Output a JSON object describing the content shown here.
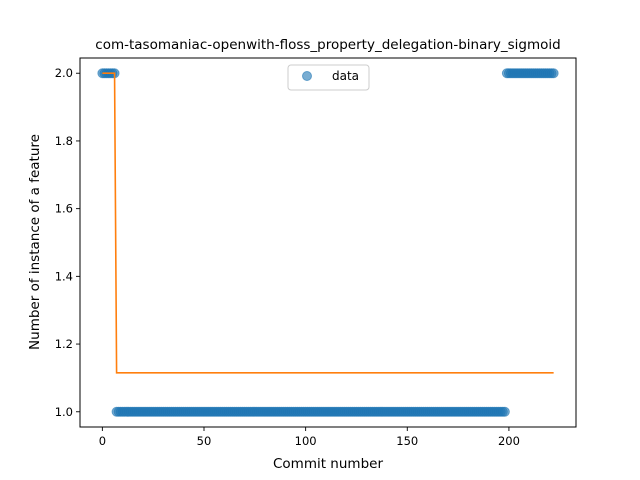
{
  "chart_data": {
    "type": "scatter",
    "title": "com-tasomaniac-openwith-floss_property_delegation-binary_sigmoid",
    "xlabel": "Commit number",
    "ylabel": "Number of instance of a feature",
    "xlim": [
      -11,
      233
    ],
    "ylim": [
      0.955,
      2.045
    ],
    "xticks": [
      0,
      50,
      100,
      150,
      200
    ],
    "yticks": [
      1.0,
      1.2,
      1.4,
      1.6,
      1.8,
      2.0
    ],
    "ytick_labels": [
      "1.0",
      "1.2",
      "1.4",
      "1.6",
      "1.8",
      "2.0"
    ],
    "legend": {
      "position": "top-center",
      "entries": [
        "data"
      ]
    },
    "grid": false,
    "series": [
      {
        "name": "data",
        "kind": "scatter",
        "color": "#1f77b4",
        "segments": [
          {
            "x_start": 0,
            "x_end": 6,
            "y": 2.0
          },
          {
            "x_start": 7,
            "x_end": 198,
            "y": 1.0
          },
          {
            "x_start": 199,
            "x_end": 222,
            "y": 2.0
          }
        ]
      },
      {
        "kind": "line",
        "color": "#ff7f0e",
        "x": [
          0,
          6,
          7,
          222
        ],
        "y": [
          2.0,
          2.0,
          1.115,
          1.115
        ]
      }
    ]
  }
}
